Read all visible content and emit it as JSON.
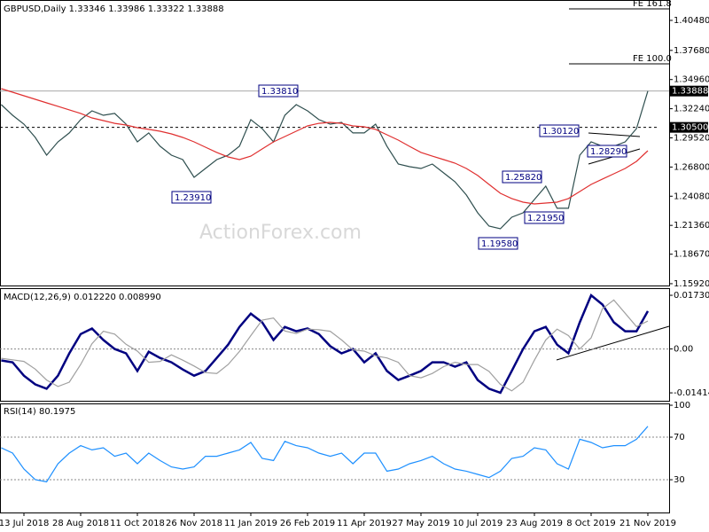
{
  "chart_data": [
    {
      "type": "line",
      "title": "GBPUSD,Daily  1.33346 1.33986 1.33322 1.33888",
      "watermark": "ActionForex.com",
      "ylim": [
        1.1575,
        1.4238
      ],
      "yticks": [
        {
          "value": 1.1592,
          "label": "1.15920"
        },
        {
          "value": 1.1867,
          "label": "1.18670"
        },
        {
          "value": 1.2136,
          "label": "1.21360"
        },
        {
          "value": 1.2408,
          "label": "1.24080"
        },
        {
          "value": 1.268,
          "label": "1.26800"
        },
        {
          "value": 1.2952,
          "label": "1.29520"
        },
        {
          "value": 1.3224,
          "label": "1.32240"
        },
        {
          "value": 1.3496,
          "label": "1.34960"
        },
        {
          "value": 1.3768,
          "label": "1.37680"
        },
        {
          "value": 1.4048,
          "label": "1.40480"
        }
      ],
      "current_price": 1.33888,
      "level": {
        "value": 1.305,
        "label": "1.30500"
      },
      "fib_levels": [
        {
          "label": "FE 161.8",
          "value": 1.4155
        },
        {
          "label": "FE 100.0",
          "value": 1.3643
        }
      ],
      "annotations": [
        "1.33810",
        "1.23910",
        "1.30120",
        "1.28290",
        "1.25820",
        "1.21950",
        "1.19580"
      ],
      "series": [
        {
          "name": "GBPUSD",
          "color": "#2f4f4f",
          "values": [
            1.3262,
            1.3163,
            1.308,
            1.2956,
            1.2791,
            1.2915,
            1.2998,
            1.3122,
            1.3204,
            1.3163,
            1.318,
            1.308,
            1.2915,
            1.2998,
            1.2874,
            1.2791,
            1.2749,
            1.2584,
            1.2667,
            1.2749,
            1.2791,
            1.2874,
            1.3122,
            1.3039,
            1.2915,
            1.3163,
            1.3262,
            1.3204,
            1.3122,
            1.308,
            1.3097,
            1.2998,
            1.2998,
            1.308,
            1.2874,
            1.2708,
            1.2683,
            1.2667,
            1.2708,
            1.2625,
            1.2543,
            1.2419,
            1.2253,
            1.2129,
            1.2104,
            1.2212,
            1.2253,
            1.2377,
            1.2501,
            1.2295,
            1.2295,
            1.2791,
            1.2915,
            1.2874,
            1.2874,
            1.2915,
            1.3039,
            1.3389
          ]
        },
        {
          "name": "MA",
          "color": "#e03030",
          "values": [
            1.3411,
            1.3378,
            1.3345,
            1.3312,
            1.3279,
            1.3246,
            1.3213,
            1.318,
            1.3138,
            1.3113,
            1.3088,
            1.3072,
            1.3047,
            1.3031,
            1.3014,
            1.2989,
            1.2956,
            1.2915,
            1.2865,
            1.2816,
            1.2774,
            1.2749,
            1.2782,
            1.2849,
            1.2915,
            1.2964,
            1.3014,
            1.3064,
            1.3088,
            1.3097,
            1.3088,
            1.3064,
            1.3055,
            1.3031,
            1.2981,
            1.2931,
            1.2873,
            1.2816,
            1.2782,
            1.2749,
            1.2716,
            1.2667,
            1.2601,
            1.2518,
            1.2435,
            1.2386,
            1.2352,
            1.2336,
            1.2344,
            1.2352,
            1.2386,
            1.2452,
            1.2518,
            1.2568,
            1.2617,
            1.2667,
            1.2733,
            1.2832
          ]
        }
      ]
    },
    {
      "type": "line",
      "title": "MACD(12,26,9) 0.012220 0.008990",
      "ylim": [
        -0.0167,
        0.0196
      ],
      "yticks": [
        0.017302,
        {
          "value": 0,
          "label": "0.00"
        },
        -0.014148
      ],
      "series": [
        {
          "name": "MACD",
          "color": "#000080",
          "values": [
            -0.0037,
            -0.0043,
            -0.0086,
            -0.0114,
            -0.0128,
            -0.0086,
            -0.0014,
            0.0048,
            0.0066,
            0.0029,
            0,
            -0.0014,
            -0.0071,
            -0.0009,
            -0.0029,
            -0.0043,
            -0.0066,
            -0.0086,
            -0.0071,
            -0.0029,
            0.0014,
            0.0071,
            0.0114,
            0.0086,
            0.0029,
            0.0071,
            0.0057,
            0.0066,
            0.0048,
            0.0009,
            -0.0014,
            0,
            -0.0043,
            -0.0014,
            -0.0071,
            -0.01,
            -0.0086,
            -0.0071,
            -0.0043,
            -0.0043,
            -0.0057,
            -0.0043,
            -0.01,
            -0.0128,
            -0.0141,
            -0.0071,
            0,
            0.0057,
            0.0071,
            0.0014,
            -0.0014,
            0.0086,
            0.0173,
            0.0143,
            0.0086,
            0.0057,
            0.0057,
            0.0122
          ]
        },
        {
          "name": "Signal",
          "color": "#a0a0a0",
          "values": [
            -0.003,
            -0.0035,
            -0.004,
            -0.0065,
            -0.01,
            -0.0121,
            -0.0107,
            -0.005,
            0.0017,
            0.0057,
            0.0048,
            0.0015,
            -0.0007,
            -0.0043,
            -0.004,
            -0.0019,
            -0.0036,
            -0.0055,
            -0.0076,
            -0.0079,
            -0.005,
            -0.0008,
            0.0043,
            0.0093,
            0.01,
            0.0058,
            0.005,
            0.0064,
            0.0062,
            0.0057,
            0.0029,
            -0.0003,
            -0.0007,
            -0.0022,
            -0.0029,
            -0.0043,
            -0.0086,
            -0.0093,
            -0.0079,
            -0.0057,
            -0.0043,
            -0.005,
            -0.005,
            -0.0072,
            -0.0114,
            -0.0135,
            -0.0107,
            -0.0036,
            0.0029,
            0.0064,
            0.0043,
            0,
            0.0036,
            0.013,
            0.0158,
            0.0115,
            0.0072,
            0.009
          ]
        }
      ]
    },
    {
      "type": "line",
      "title": "RSI(14) 80.1975",
      "ylim": [
        -0.8,
        101.7
      ],
      "yticks": [
        100,
        70,
        30
      ],
      "grid_ticks": [
        70,
        30
      ],
      "categories": [
        null,
        null,
        "13 Jul 2018",
        null,
        null,
        null,
        null,
        "28 Aug 2018",
        null,
        null,
        null,
        null,
        "11 Oct 2018",
        null,
        null,
        null,
        null,
        "26 Nov 2018",
        null,
        null,
        null,
        null,
        "11 Jan 2019",
        null,
        null,
        null,
        null,
        "26 Feb 2019",
        null,
        null,
        null,
        null,
        "11 Apr 2019",
        null,
        null,
        null,
        null,
        "27 May 2019",
        null,
        null,
        null,
        null,
        "10 Jul 2019",
        null,
        null,
        null,
        null,
        "23 Aug 2019",
        null,
        null,
        null,
        null,
        "8 Oct 2019",
        null,
        null,
        null,
        null,
        "21 Nov 2019"
      ],
      "series": [
        {
          "name": "RSI",
          "color": "#1e90ff",
          "values": [
            60,
            55,
            40,
            30,
            28,
            45,
            55,
            62,
            58,
            60,
            52,
            55,
            45,
            55,
            48,
            42,
            40,
            42,
            52,
            52,
            55,
            58,
            65,
            50,
            48,
            66,
            62,
            60,
            55,
            52,
            55,
            45,
            55,
            55,
            38,
            40,
            45,
            48,
            52,
            45,
            40,
            38,
            35,
            32,
            38,
            50,
            52,
            60,
            58,
            45,
            40,
            68,
            65,
            60,
            62,
            62,
            68,
            80.1975
          ]
        }
      ]
    }
  ]
}
